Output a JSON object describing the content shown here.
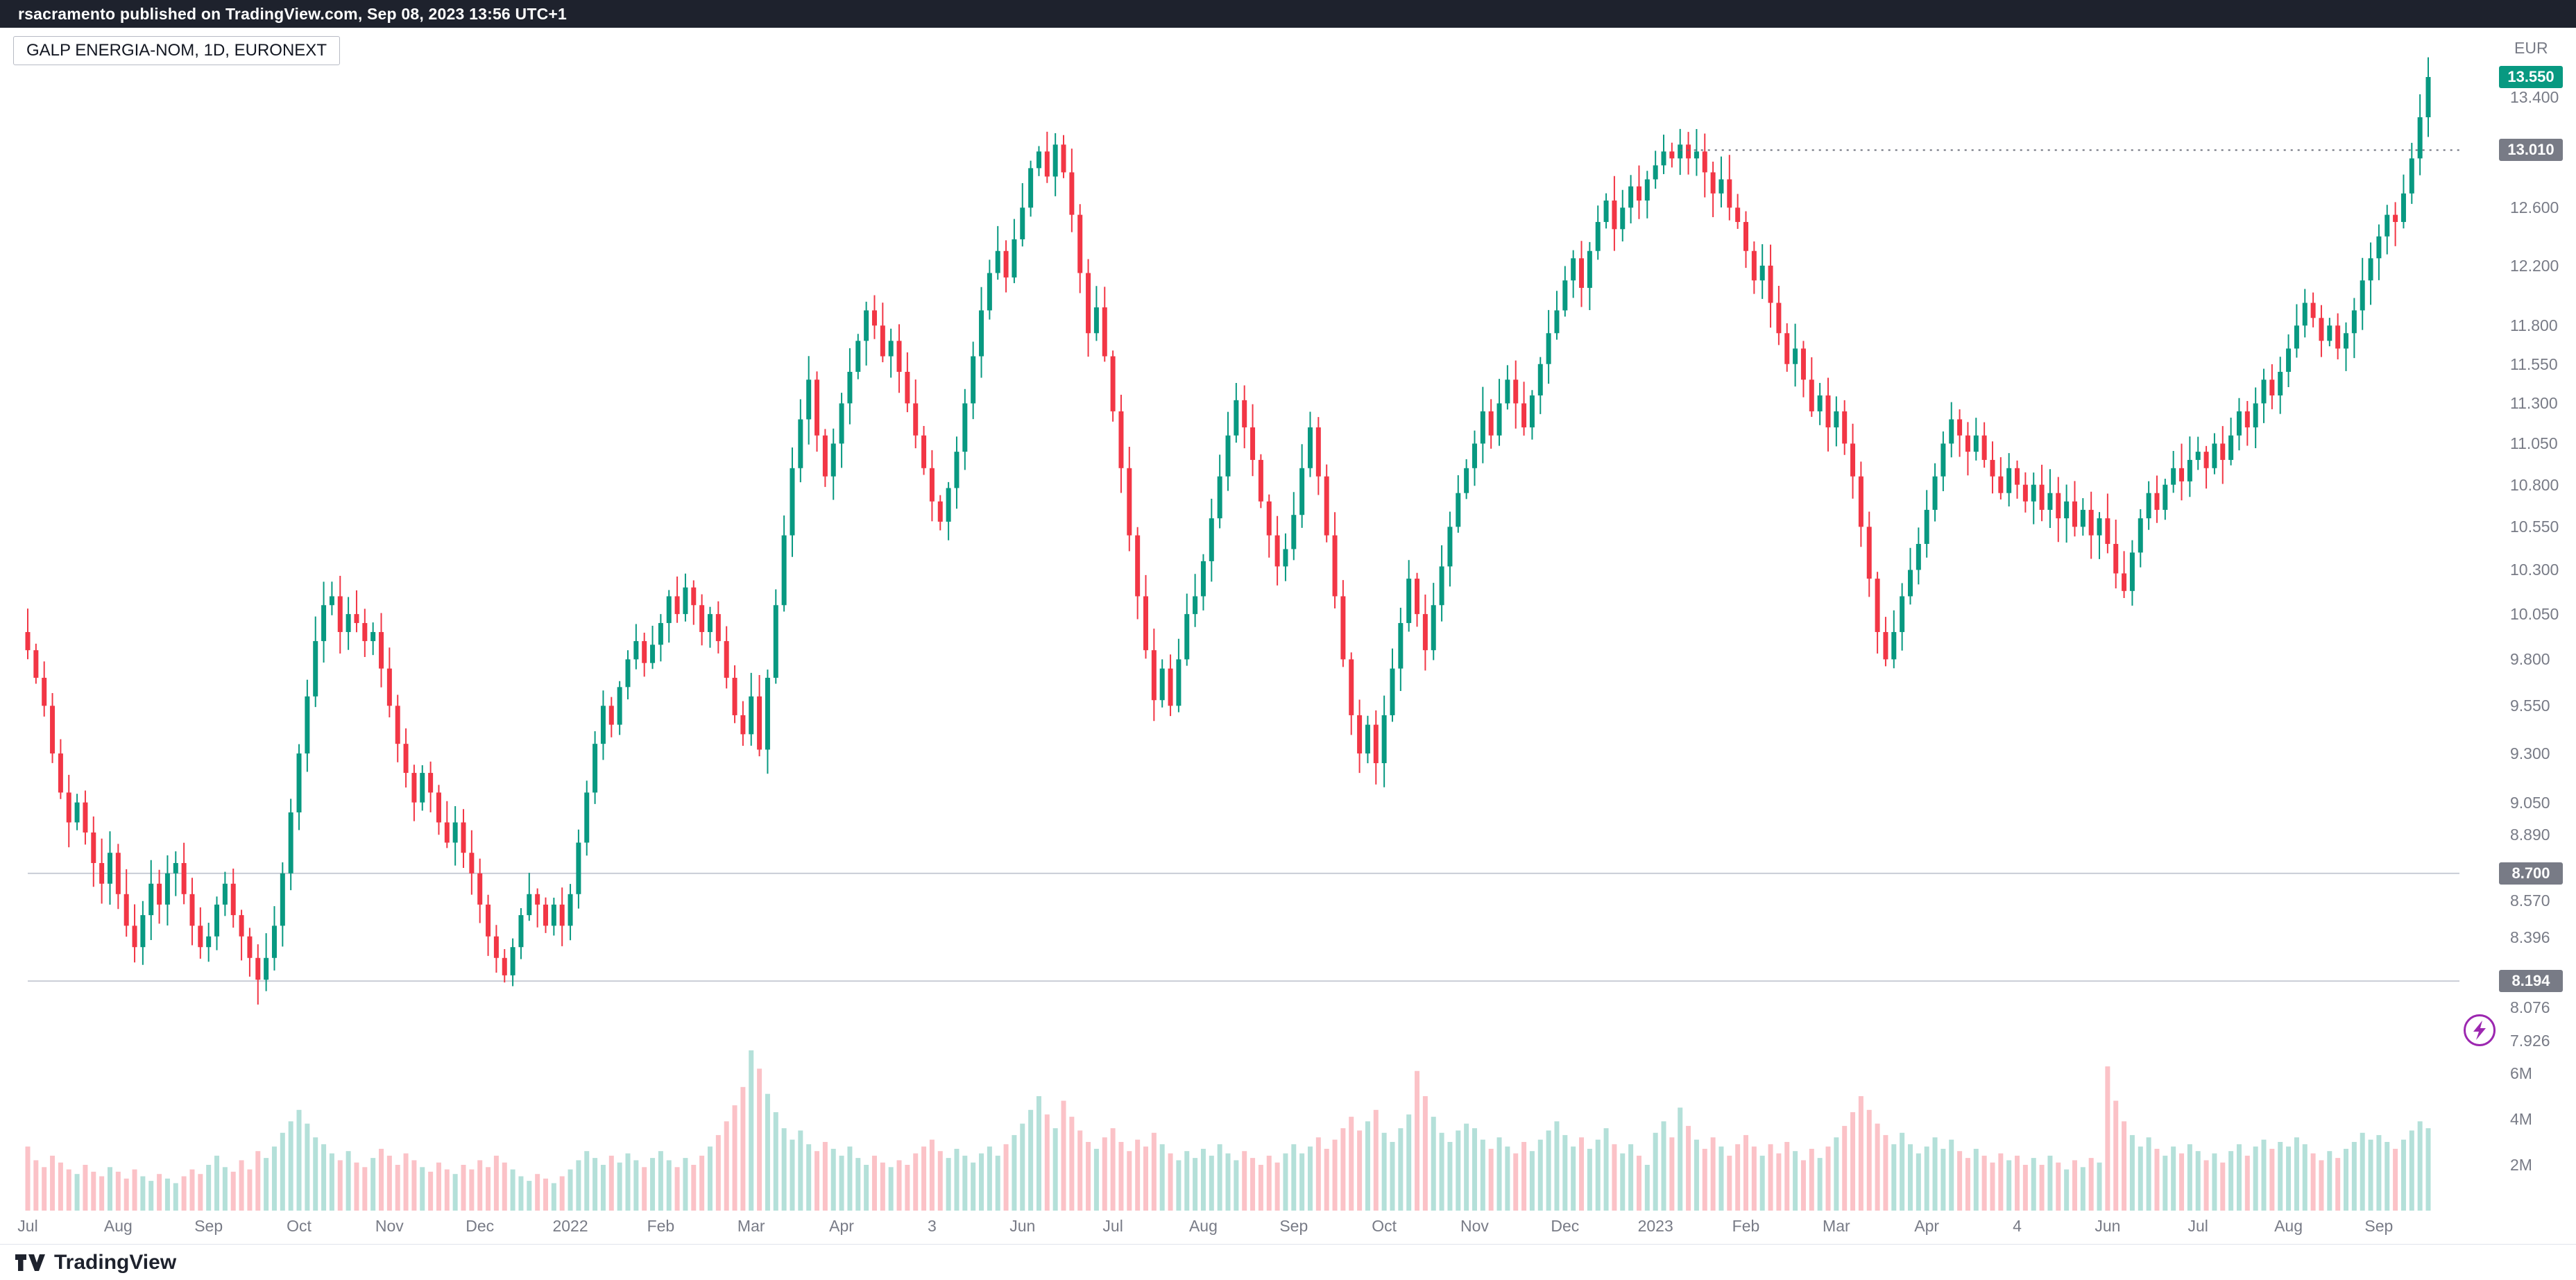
{
  "meta": {
    "publish_bar": "rsacramento published on TradingView.com, Sep 08, 2023 13:56 UTC+1",
    "symbol_title": "GALP ENERGIA-NOM, 1D, EURONEXT",
    "currency": "EUR",
    "logo_text": "TradingView"
  },
  "colors": {
    "up": "#089981",
    "down": "#F23645",
    "up_vol": "rgba(8,153,129,0.30)",
    "down_vol": "rgba(242,54,69,0.30)",
    "topbar_bg": "#1E222D",
    "axis_text": "#787B86",
    "badge_last_bg": "#089981",
    "badge_level_bg": "#787B86",
    "level_line": "#CACDD6",
    "dotted_line": "#6B6F7B",
    "accent_purple": "#9C27B0"
  },
  "chart_data": {
    "type": "candlestick+volume",
    "title": "GALP ENERGIA-NOM, 1D, EURONEXT",
    "scale": "log",
    "grid": "off",
    "legend_position": "top-left",
    "price_range_visible": [
      7.8,
      13.8
    ],
    "volume_range_visible_millions": [
      0,
      7
    ],
    "x_labels": [
      "Jul",
      "Aug",
      "Sep",
      "Oct",
      "Nov",
      "Dec",
      "2022",
      "Feb",
      "Mar",
      "Apr",
      "3",
      "Jun",
      "Jul",
      "Aug",
      "Sep",
      "Oct",
      "Nov",
      "Dec",
      "2023",
      "Feb",
      "Mar",
      "Apr",
      "4",
      "Jun",
      "Jul",
      "Aug",
      "Sep"
    ],
    "bars_per_month": 11,
    "price_ticks": [
      "13.400",
      "12.600",
      "12.200",
      "11.800",
      "11.550",
      "11.300",
      "11.050",
      "10.800",
      "10.550",
      "10.300",
      "10.050",
      "9.800",
      "9.550",
      "9.300",
      "9.050",
      "8.890",
      "8.570",
      "8.396",
      "8.076",
      "7.926"
    ],
    "volume_ticks": [
      "6M",
      "4M",
      "2M"
    ],
    "badges": [
      {
        "label": "13.550",
        "price": 13.55,
        "type": "last"
      },
      {
        "label": "13.010",
        "price": 13.01,
        "type": "level"
      },
      {
        "label": "8.700",
        "price": 8.7,
        "type": "level"
      },
      {
        "label": "8.194",
        "price": 8.194,
        "type": "level"
      }
    ],
    "level_lines": [
      {
        "price": 13.01,
        "style": "dotted",
        "from_index": 201
      },
      {
        "price": 8.7,
        "style": "solid",
        "from_index": 0
      },
      {
        "price": 8.194,
        "style": "solid",
        "from_index": 0
      }
    ],
    "first_open": 9.95,
    "closes": [
      9.85,
      9.7,
      9.55,
      9.3,
      9.1,
      8.95,
      9.05,
      8.9,
      8.75,
      8.65,
      8.8,
      8.6,
      8.45,
      8.35,
      8.5,
      8.65,
      8.55,
      8.7,
      8.75,
      8.6,
      8.45,
      8.35,
      8.4,
      8.55,
      8.65,
      8.5,
      8.4,
      8.3,
      8.2,
      8.3,
      8.45,
      8.7,
      9.0,
      9.3,
      9.6,
      9.9,
      10.1,
      10.15,
      9.95,
      10.05,
      10.0,
      9.9,
      9.95,
      9.75,
      9.55,
      9.35,
      9.2,
      9.05,
      9.2,
      9.1,
      8.95,
      8.85,
      8.95,
      8.8,
      8.7,
      8.55,
      8.4,
      8.3,
      8.22,
      8.35,
      8.5,
      8.6,
      8.55,
      8.45,
      8.55,
      8.45,
      8.6,
      8.85,
      9.1,
      9.35,
      9.55,
      9.45,
      9.65,
      9.8,
      9.9,
      9.78,
      9.88,
      10.0,
      10.15,
      10.05,
      10.2,
      10.1,
      9.95,
      10.05,
      9.9,
      9.7,
      9.5,
      9.4,
      9.6,
      9.32,
      9.7,
      10.1,
      10.5,
      10.9,
      11.2,
      11.45,
      11.1,
      10.85,
      11.05,
      11.3,
      11.5,
      11.7,
      11.9,
      11.8,
      11.6,
      11.7,
      11.5,
      11.3,
      11.1,
      10.9,
      10.7,
      10.58,
      10.78,
      11.0,
      11.3,
      11.6,
      11.9,
      12.15,
      12.3,
      12.12,
      12.38,
      12.6,
      12.88,
      13.0,
      12.82,
      13.05,
      12.85,
      12.55,
      12.15,
      11.75,
      11.92,
      11.6,
      11.25,
      10.9,
      10.5,
      10.15,
      9.85,
      9.58,
      9.75,
      9.55,
      9.8,
      10.05,
      10.15,
      10.35,
      10.6,
      10.85,
      11.1,
      11.32,
      11.15,
      10.95,
      10.7,
      10.5,
      10.32,
      10.42,
      10.62,
      10.9,
      11.15,
      10.85,
      10.5,
      10.15,
      9.8,
      9.5,
      9.3,
      9.45,
      9.25,
      9.5,
      9.75,
      10.0,
      10.25,
      10.05,
      9.85,
      10.1,
      10.32,
      10.55,
      10.75,
      10.9,
      11.05,
      11.25,
      11.1,
      11.3,
      11.45,
      11.3,
      11.15,
      11.35,
      11.55,
      11.75,
      11.9,
      12.1,
      12.25,
      12.05,
      12.3,
      12.5,
      12.65,
      12.45,
      12.6,
      12.75,
      12.65,
      12.8,
      12.9,
      13.0,
      12.95,
      13.05,
      12.95,
      13.0,
      12.85,
      12.7,
      12.8,
      12.6,
      12.5,
      12.3,
      12.1,
      12.2,
      11.95,
      11.75,
      11.55,
      11.65,
      11.45,
      11.25,
      11.35,
      11.15,
      11.25,
      11.05,
      10.85,
      10.55,
      10.25,
      9.95,
      9.8,
      9.95,
      10.15,
      10.3,
      10.45,
      10.65,
      10.85,
      11.05,
      11.2,
      11.1,
      11.0,
      11.1,
      10.95,
      10.85,
      10.75,
      10.9,
      10.8,
      10.7,
      10.8,
      10.65,
      10.75,
      10.6,
      10.7,
      10.55,
      10.65,
      10.5,
      10.6,
      10.45,
      10.28,
      10.18,
      10.4,
      10.6,
      10.75,
      10.65,
      10.8,
      10.9,
      10.82,
      10.95,
      11.0,
      10.9,
      11.05,
      10.95,
      11.1,
      11.25,
      11.15,
      11.3,
      11.45,
      11.35,
      11.5,
      11.65,
      11.8,
      11.95,
      11.85,
      11.7,
      11.8,
      11.65,
      11.75,
      11.9,
      12.1,
      12.25,
      12.4,
      12.55,
      12.5,
      12.7,
      12.95,
      13.25,
      13.55
    ],
    "volumes_m": [
      2.8,
      2.2,
      1.9,
      2.4,
      2.1,
      1.8,
      1.6,
      2.0,
      1.7,
      1.5,
      1.9,
      1.7,
      1.4,
      1.8,
      1.5,
      1.3,
      1.6,
      1.4,
      1.2,
      1.5,
      1.8,
      1.6,
      2.0,
      2.4,
      1.9,
      1.7,
      2.2,
      1.8,
      2.6,
      2.3,
      2.8,
      3.4,
      3.9,
      4.4,
      3.8,
      3.2,
      2.9,
      2.5,
      2.2,
      2.6,
      2.1,
      1.9,
      2.3,
      2.7,
      2.4,
      2.0,
      2.5,
      2.2,
      1.9,
      1.7,
      2.1,
      1.8,
      1.6,
      2.0,
      1.8,
      2.2,
      1.9,
      2.4,
      2.1,
      1.8,
      1.5,
      1.3,
      1.6,
      1.4,
      1.2,
      1.5,
      1.8,
      2.2,
      2.6,
      2.3,
      2.0,
      2.4,
      2.1,
      2.5,
      2.2,
      1.9,
      2.3,
      2.6,
      2.2,
      1.9,
      2.3,
      2.0,
      2.4,
      2.8,
      3.3,
      3.9,
      4.6,
      5.4,
      7.0,
      6.2,
      5.1,
      4.3,
      3.6,
      3.1,
      3.5,
      2.9,
      2.6,
      3.0,
      2.7,
      2.4,
      2.8,
      2.3,
      2.0,
      2.4,
      2.1,
      1.9,
      2.2,
      2.0,
      2.5,
      2.8,
      3.1,
      2.6,
      2.3,
      2.7,
      2.4,
      2.1,
      2.5,
      2.8,
      2.4,
      2.9,
      3.3,
      3.8,
      4.4,
      5.0,
      4.2,
      3.6,
      4.8,
      4.1,
      3.5,
      3.0,
      2.7,
      3.2,
      3.6,
      3.0,
      2.6,
      3.1,
      2.8,
      3.4,
      2.9,
      2.5,
      2.2,
      2.6,
      2.3,
      2.7,
      2.4,
      2.9,
      2.5,
      2.2,
      2.6,
      2.3,
      2.0,
      2.4,
      2.1,
      2.5,
      2.9,
      2.5,
      2.8,
      3.2,
      2.7,
      3.1,
      3.6,
      4.1,
      3.5,
      3.9,
      4.4,
      3.4,
      3.0,
      3.6,
      4.2,
      6.1,
      5.0,
      4.1,
      3.4,
      3.0,
      3.5,
      3.8,
      3.6,
      3.1,
      2.7,
      3.2,
      2.8,
      2.5,
      3.0,
      2.6,
      3.1,
      3.5,
      3.9,
      3.3,
      2.8,
      3.2,
      2.7,
      3.1,
      3.6,
      2.9,
      2.5,
      2.9,
      2.4,
      2.0,
      3.4,
      3.9,
      3.2,
      4.5,
      3.7,
      3.1,
      2.7,
      3.2,
      2.8,
      2.4,
      2.9,
      3.3,
      2.8,
      2.4,
      2.9,
      2.5,
      3.0,
      2.6,
      2.2,
      2.7,
      2.3,
      2.8,
      3.2,
      3.7,
      4.3,
      5.0,
      4.4,
      3.8,
      3.3,
      2.9,
      3.4,
      2.9,
      2.5,
      2.8,
      3.2,
      2.7,
      3.1,
      2.6,
      2.3,
      2.7,
      2.4,
      2.1,
      2.5,
      2.2,
      2.4,
      2.0,
      2.3,
      2.0,
      2.4,
      2.1,
      1.8,
      2.2,
      1.9,
      2.3,
      2.1,
      6.3,
      4.8,
      3.9,
      3.3,
      2.8,
      3.2,
      2.7,
      2.4,
      2.8,
      2.5,
      2.9,
      2.6,
      2.2,
      2.5,
      2.1,
      2.6,
      2.9,
      2.4,
      2.8,
      3.1,
      2.7,
      3.0,
      2.8,
      3.2,
      2.9,
      2.5,
      2.2,
      2.6,
      2.3,
      2.7,
      3.0,
      3.4,
      3.1,
      3.3,
      3.0,
      2.7,
      3.1,
      3.5,
      3.9,
      3.6
    ]
  }
}
